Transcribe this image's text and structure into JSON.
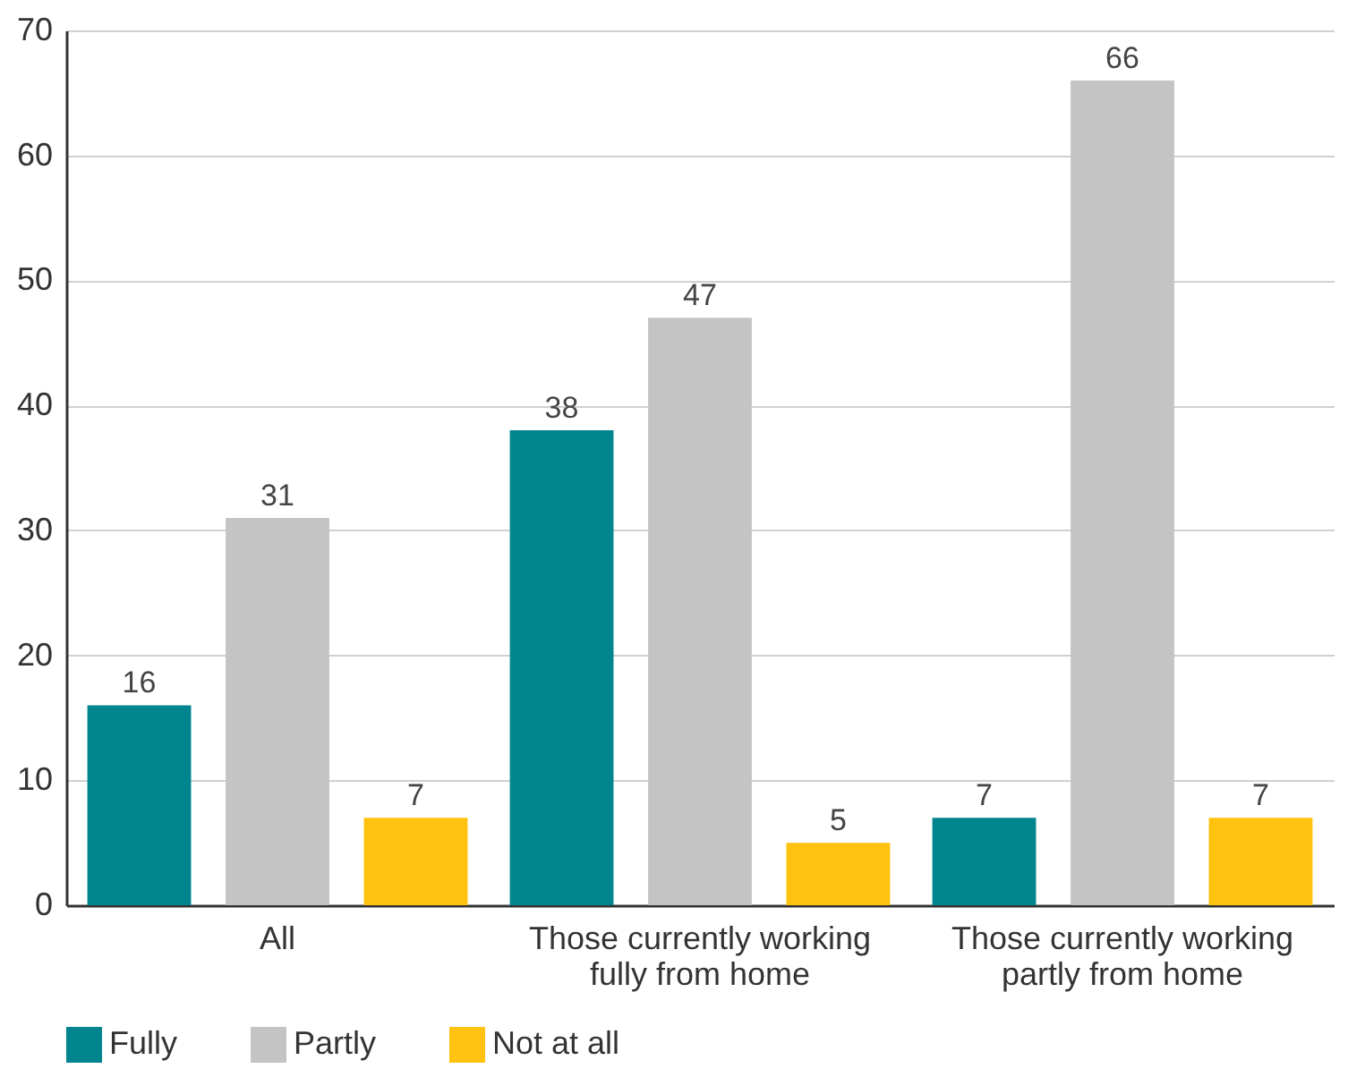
{
  "chart_data": {
    "type": "bar",
    "categories": [
      "All",
      "Those currently working fully from home",
      "Those currently working partly from home"
    ],
    "series": [
      {
        "name": "Fully",
        "color": "#00858f",
        "values": [
          16,
          38,
          7
        ]
      },
      {
        "name": "Partly",
        "color": "#c4c4c4",
        "values": [
          31,
          47,
          66
        ]
      },
      {
        "name": "Not at all",
        "color": "#ffc20e",
        "values": [
          7,
          5,
          7
        ]
      }
    ],
    "ylim": [
      0,
      70
    ],
    "yticks": [
      0,
      10,
      20,
      30,
      40,
      50,
      60,
      70
    ],
    "grid": "y",
    "legend": "bottom",
    "data_labels": true
  }
}
